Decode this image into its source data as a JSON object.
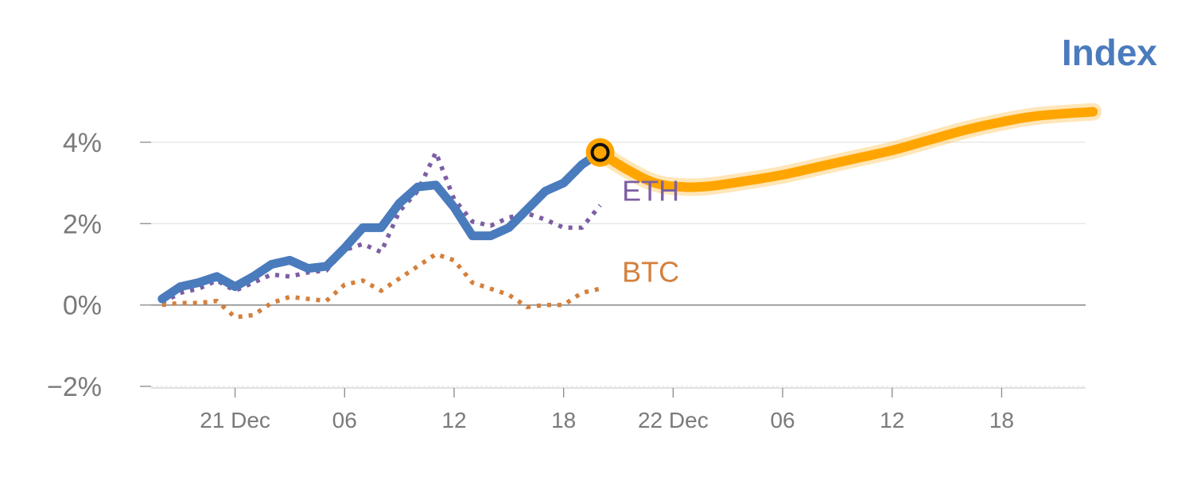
{
  "chart_data": {
    "type": "line",
    "title": "Index",
    "y_unit": "%",
    "ylim": [
      -2,
      4.8
    ],
    "y_ticks": [
      {
        "value": 4,
        "label": "4%"
      },
      {
        "value": 2,
        "label": "2%"
      },
      {
        "value": 0,
        "label": "0%"
      },
      {
        "value": -2,
        "label": "−2%"
      }
    ],
    "x_ticks": [
      {
        "value": 2,
        "label": "21 Dec"
      },
      {
        "value": 5,
        "label": "06"
      },
      {
        "value": 8,
        "label": "12"
      },
      {
        "value": 11,
        "label": "18"
      },
      {
        "value": 14,
        "label": "22 Dec"
      },
      {
        "value": 17,
        "label": "06"
      },
      {
        "value": 20,
        "label": "12"
      },
      {
        "value": 23,
        "label": "18"
      }
    ],
    "xlim": [
      -0.3,
      25.3
    ],
    "grid": true,
    "series": [
      {
        "name": "",
        "color": "#4a7bbd",
        "style": "solid",
        "x": [
          0,
          0.5,
          1,
          1.5,
          2,
          2.5,
          3,
          3.5,
          4,
          4.5,
          5,
          5.5,
          6,
          6.5,
          7,
          7.5,
          8,
          8.5,
          9,
          9.5,
          10,
          10.5,
          11,
          11.5,
          12
        ],
        "y": [
          0.15,
          0.45,
          0.55,
          0.7,
          0.45,
          0.7,
          1.0,
          1.1,
          0.9,
          0.95,
          1.4,
          1.9,
          1.9,
          2.5,
          2.9,
          2.95,
          2.4,
          1.7,
          1.7,
          1.9,
          2.35,
          2.8,
          3.0,
          3.45,
          3.75
        ]
      },
      {
        "name": "ETH",
        "color": "#7c5ea3",
        "style": "dotted",
        "x": [
          0,
          0.5,
          1,
          1.5,
          2,
          2.5,
          3,
          3.5,
          4,
          4.5,
          5,
          5.5,
          6,
          6.5,
          7,
          7.5,
          8,
          8.5,
          9,
          9.5,
          10,
          10.5,
          11,
          11.5,
          12
        ],
        "y": [
          0.05,
          0.3,
          0.4,
          0.6,
          0.35,
          0.55,
          0.75,
          0.7,
          0.8,
          0.85,
          1.35,
          1.5,
          1.3,
          2.3,
          2.8,
          3.75,
          2.6,
          2.05,
          1.95,
          2.15,
          2.25,
          2.1,
          1.9,
          1.9,
          2.45
        ]
      },
      {
        "name": "BTC",
        "color": "#d4803c",
        "style": "dotted",
        "x": [
          0,
          0.5,
          1,
          1.5,
          2,
          2.5,
          3,
          3.5,
          4,
          4.5,
          5,
          5.5,
          6,
          6.5,
          7,
          7.5,
          8,
          8.5,
          9,
          9.5,
          10,
          10.5,
          11,
          11.5,
          12
        ],
        "y": [
          0.0,
          0.05,
          0.05,
          0.1,
          -0.3,
          -0.25,
          0.05,
          0.2,
          0.15,
          0.1,
          0.5,
          0.6,
          0.35,
          0.65,
          0.95,
          1.25,
          1.1,
          0.55,
          0.4,
          0.25,
          -0.05,
          0.0,
          0.0,
          0.3,
          0.4
        ]
      },
      {
        "name": "",
        "color": "#ffa500",
        "style": "projection",
        "x": [
          12,
          12.7,
          13.5,
          14.3,
          15,
          16,
          17,
          18,
          19,
          20,
          21,
          22,
          23,
          24,
          25.5
        ],
        "y": [
          3.75,
          3.35,
          3.0,
          2.9,
          2.92,
          3.05,
          3.2,
          3.4,
          3.6,
          3.8,
          4.05,
          4.3,
          4.5,
          4.65,
          4.75
        ]
      }
    ],
    "marker": {
      "x": 12,
      "y": 3.75,
      "fill": "#ffa500",
      "ring": "#111111"
    },
    "labels": [
      {
        "text": "ETH",
        "x": 12.6,
        "y": 2.8,
        "color": "#7c5ea3"
      },
      {
        "text": "BTC",
        "x": 12.6,
        "y": 0.8,
        "color": "#d4803c"
      }
    ]
  }
}
